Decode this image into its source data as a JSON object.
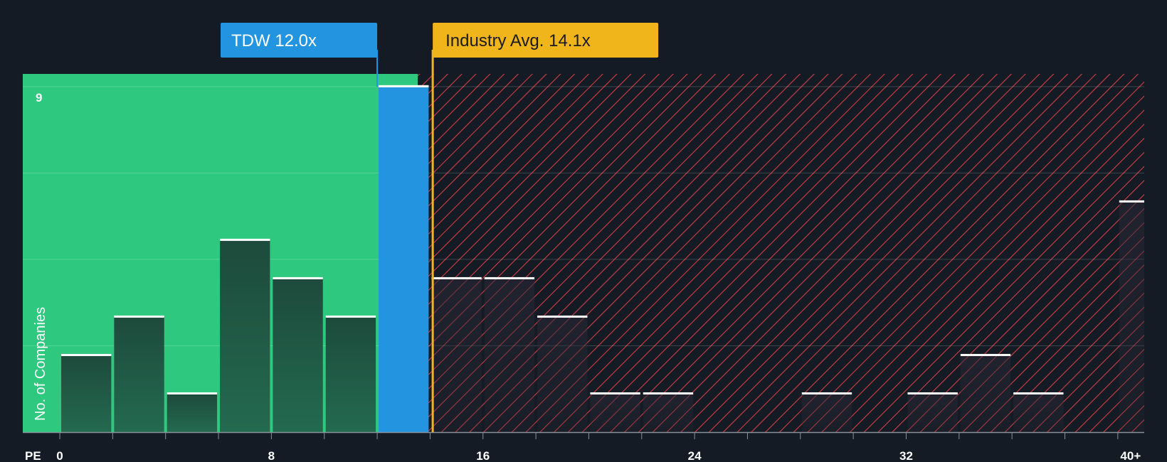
{
  "chart_data": {
    "type": "bar",
    "xlabel": "PE",
    "ylabel": "No. of Companies",
    "xlim": [
      -1.4,
      41
    ],
    "ylim": [
      0,
      9.33
    ],
    "bin_width": 2,
    "x_ticks": [
      0,
      8,
      16,
      24,
      32,
      40
    ],
    "x_tick_labels": [
      "0",
      "8",
      "16",
      "24",
      "32",
      "40+"
    ],
    "y_ticks": [
      9
    ],
    "y_tick_labels": [
      "9"
    ],
    "y_grid": [
      2.25,
      4.5,
      6.75,
      9
    ],
    "bins": [
      {
        "start": 0,
        "count": 2
      },
      {
        "start": 2,
        "count": 3
      },
      {
        "start": 4,
        "count": 1
      },
      {
        "start": 6,
        "count": 5
      },
      {
        "start": 8,
        "count": 4
      },
      {
        "start": 10,
        "count": 3
      },
      {
        "start": 12,
        "count": 9
      },
      {
        "start": 14,
        "count": 4
      },
      {
        "start": 16,
        "count": 4
      },
      {
        "start": 18,
        "count": 3
      },
      {
        "start": 20,
        "count": 1
      },
      {
        "start": 22,
        "count": 1
      },
      {
        "start": 24,
        "count": 0
      },
      {
        "start": 26,
        "count": 0
      },
      {
        "start": 28,
        "count": 1
      },
      {
        "start": 30,
        "count": 0
      },
      {
        "start": 32,
        "count": 1
      },
      {
        "start": 34,
        "count": 2
      },
      {
        "start": 36,
        "count": 1
      },
      {
        "start": 38,
        "count": 0
      },
      {
        "start": 40,
        "count": 6
      }
    ],
    "company": {
      "ticker": "TDW",
      "pe": 12.0,
      "label": "TDW 12.0x",
      "color": "#2394e0"
    },
    "industry": {
      "pe": 14.1,
      "label": "Industry Avg. 14.1x",
      "color": "#f0b51a"
    },
    "colors": {
      "background": "#151b24",
      "undervalued_zone": "#2ec97e",
      "overvalued_hatch": "#d13d45",
      "bar_fill_top": "#1d4a3c",
      "bar_fill_bottom": "#236a4f",
      "bar_cap": "#ffffff",
      "grid": "#ffffff"
    }
  }
}
